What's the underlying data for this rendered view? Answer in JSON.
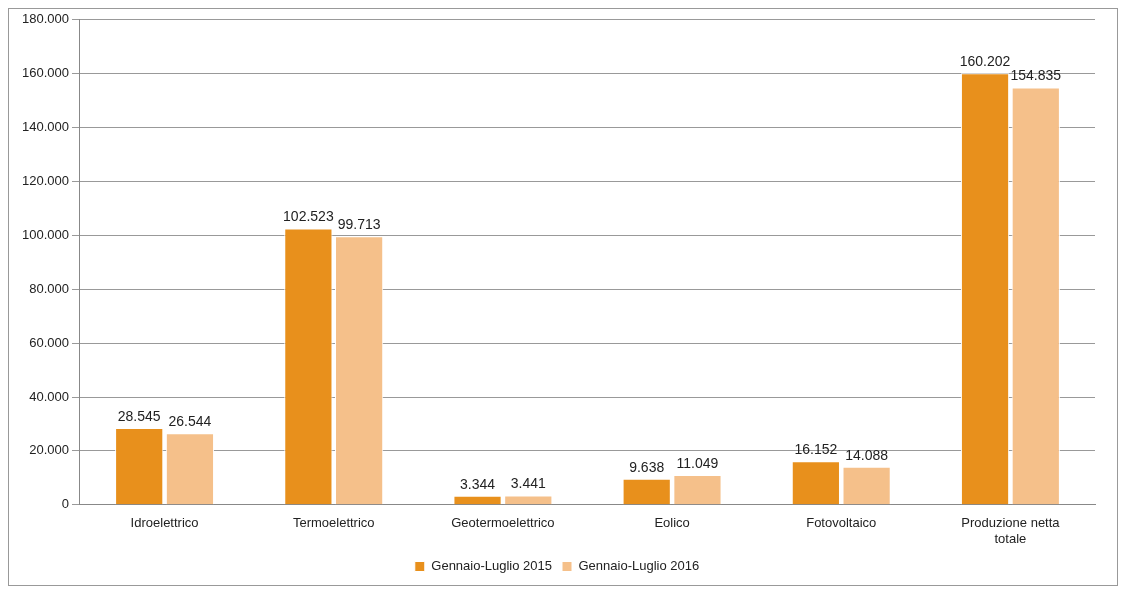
{
  "chart_data": {
    "type": "bar",
    "categories": [
      "Idroelettrico",
      "Termoelettrico",
      "Geotermoelettrico",
      "Eolico",
      "Fotovoltaico",
      "Produzione netta totale"
    ],
    "series": [
      {
        "name": "Gennaio-Luglio 2015",
        "color": "#e8901c",
        "values": [
          28545,
          102523,
          3344,
          9638,
          16152,
          160202
        ],
        "value_labels": [
          "28.545",
          "102.523",
          "3.344",
          "9.638",
          "16.152",
          "160.202"
        ]
      },
      {
        "name": "Gennaio-Luglio 2016",
        "color": "#f5c08a",
        "values": [
          26544,
          99713,
          3441,
          11049,
          14088,
          154835
        ],
        "value_labels": [
          "26.544",
          "99.713",
          "3.441",
          "11.049",
          "14.088",
          "154.835"
        ]
      }
    ],
    "ylim": [
      0,
      180000
    ],
    "yticks": [
      {
        "value": 0,
        "label": "0"
      },
      {
        "value": 20000,
        "label": "20.000"
      },
      {
        "value": 40000,
        "label": "40.000"
      },
      {
        "value": 60000,
        "label": "60.000"
      },
      {
        "value": 80000,
        "label": "80.000"
      },
      {
        "value": 100000,
        "label": "100.000"
      },
      {
        "value": 120000,
        "label": "120.000"
      },
      {
        "value": 140000,
        "label": "140.000"
      },
      {
        "value": 160000,
        "label": "160.000"
      },
      {
        "value": 180000,
        "label": "180.000"
      }
    ],
    "grid": "y",
    "legend": "bottom"
  }
}
